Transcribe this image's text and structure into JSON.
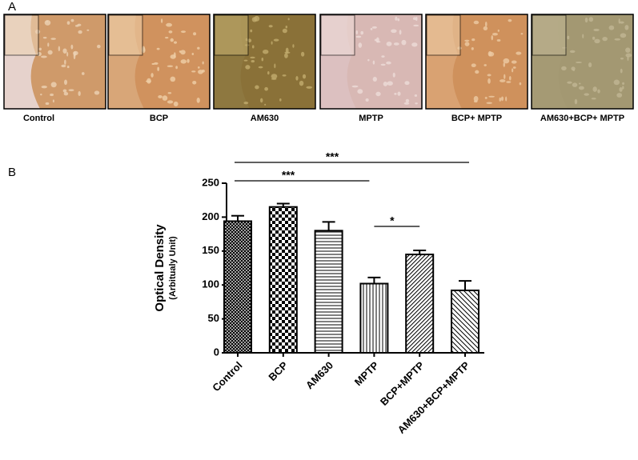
{
  "panel_labels": [
    "A",
    "B"
  ],
  "image_captions": [
    "Control",
    "BCP",
    "AM630",
    "MPTP",
    "BCP+ MPTP",
    "AM630+BCP+ MPTP"
  ],
  "chart_data": {
    "type": "bar",
    "y_label": "Optical Density",
    "y_sublabel": "(Arbitualy Unit)",
    "categories": [
      "Control",
      "BCP",
      "AM630",
      "MPTP",
      "BCP+MPTP",
      "AM630+BCP+MPTP"
    ],
    "values": [
      194,
      215,
      180,
      102,
      145,
      92
    ],
    "errors": [
      8,
      5,
      13,
      9,
      6,
      14
    ],
    "patterns": [
      "crosshatch",
      "checker",
      "horizontal",
      "vertical",
      "diag-up",
      "diag-down"
    ],
    "ylim": [
      0,
      250
    ],
    "yticks": [
      0,
      50,
      100,
      150,
      200,
      250
    ],
    "comparisons": [
      {
        "label": "***",
        "between": [
          0,
          5
        ]
      },
      {
        "label": "***",
        "between": [
          0,
          3
        ]
      },
      {
        "label": "*",
        "between": [
          3,
          4
        ]
      }
    ]
  }
}
